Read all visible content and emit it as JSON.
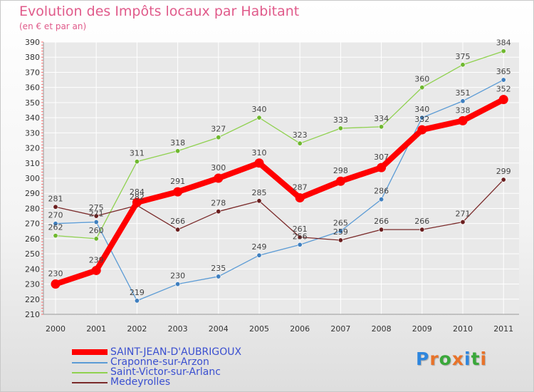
{
  "colors": {
    "title": "#e05a8a",
    "grid": "#ffffff",
    "axis_text": "#333333",
    "label_text": "#444444",
    "legend_text": "#3a4fd0"
  },
  "logo": {
    "text": "Proxiti",
    "letter_colors": [
      "#2e86de",
      "#e8732a",
      "#3aa83a",
      "#e8732a",
      "#2e86de",
      "#3aa83a",
      "#e8732a"
    ]
  },
  "chart_data": {
    "type": "line",
    "title": "Evolution des Impôts locaux par Habitant",
    "subtitle": "(en € et par an)",
    "xlabel": "",
    "ylabel": "",
    "categories": [
      "2000",
      "2001",
      "2002",
      "2003",
      "2004",
      "2005",
      "2006",
      "2007",
      "2008",
      "2009",
      "2010",
      "2011"
    ],
    "ylim": [
      210,
      390
    ],
    "yticks": [
      210,
      220,
      230,
      240,
      250,
      260,
      270,
      280,
      290,
      300,
      310,
      320,
      330,
      340,
      350,
      360,
      370,
      380,
      390
    ],
    "grid": true,
    "legend_position": "bottom-left",
    "series": [
      {
        "name": "Craponne-sur-Arzon",
        "color": "#5b9bd5",
        "point_color": "#3f7fbf",
        "values": [
          270,
          271,
          219,
          230,
          235,
          249,
          256,
          265,
          286,
          340,
          351,
          365
        ],
        "labels": [
          "270",
          "271",
          "219",
          "230",
          "235",
          "249",
          "256",
          "265",
          "286",
          "340",
          "351",
          "365"
        ],
        "thick": false
      },
      {
        "name": "Saint-Victor-sur-Arlanc",
        "color": "#8fd14f",
        "point_color": "#6fb82f",
        "values": [
          262,
          260,
          311,
          318,
          327,
          340,
          323,
          333,
          334,
          360,
          375,
          384
        ],
        "labels": [
          "262",
          "260",
          "311",
          "318",
          "327",
          "340",
          "323",
          "333",
          "334",
          "360",
          "375",
          "384"
        ],
        "thick": false
      },
      {
        "name": "Medeyrolles",
        "color": "#7a2a2a",
        "point_color": "#6b1f1f",
        "values": [
          281,
          275,
          282,
          266,
          278,
          285,
          261,
          259,
          266,
          266,
          271,
          299
        ],
        "labels": [
          "281",
          "275",
          "282",
          "266",
          "278",
          "285",
          "261",
          "259",
          "266",
          "266",
          "271",
          "299"
        ],
        "thick": false
      },
      {
        "name": "SAINT-JEAN-D'AUBRIGOUX",
        "color": "#ff0000",
        "point_color": "#ff0000",
        "values": [
          230,
          239,
          284,
          291,
          300,
          310,
          287,
          298,
          307,
          332,
          338,
          352
        ],
        "labels": [
          "230",
          "239",
          "284",
          "291",
          "300",
          "310",
          "287",
          "298",
          "307",
          "332",
          "338",
          "352"
        ],
        "thick": true
      }
    ],
    "legend_order": [
      "SAINT-JEAN-D'AUBRIGOUX",
      "Craponne-sur-Arzon",
      "Saint-Victor-sur-Arlanc",
      "Medeyrolles"
    ]
  }
}
